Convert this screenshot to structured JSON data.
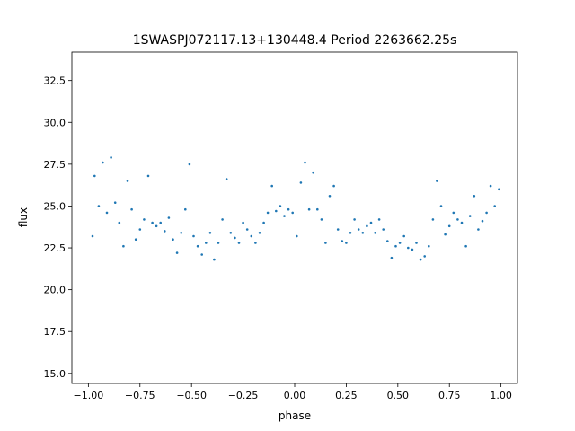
{
  "chart_data": {
    "type": "scatter",
    "title": "1SWASPJ072117.13+130448.4 Period 2263662.25s",
    "xlabel": "phase",
    "ylabel": "flux",
    "xlim": [
      -1.08,
      1.08
    ],
    "ylim": [
      14.4,
      34.2
    ],
    "x_ticks": [
      -1.0,
      -0.75,
      -0.5,
      -0.25,
      0.0,
      0.25,
      0.5,
      0.75,
      1.0
    ],
    "x_tick_labels": [
      "−1.00",
      "−0.75",
      "−0.50",
      "−0.25",
      "0.00",
      "0.25",
      "0.50",
      "0.75",
      "1.00"
    ],
    "y_ticks": [
      15.0,
      17.5,
      20.0,
      22.5,
      25.0,
      27.5,
      30.0,
      32.5
    ],
    "y_tick_labels": [
      "15.0",
      "17.5",
      "20.0",
      "22.5",
      "25.0",
      "27.5",
      "30.0",
      "32.5"
    ],
    "grid": false,
    "marker_color": "#1f77b4",
    "series": [
      {
        "note_values_are_approximate_cluster_summary": false,
        "x": [
          -0.98,
          -0.97,
          -0.95,
          -0.93,
          -0.91,
          -0.89,
          -0.87,
          -0.85,
          -0.83,
          -0.81,
          -0.79,
          -0.77,
          -0.75,
          -0.73,
          -0.71,
          -0.69,
          -0.67,
          -0.65,
          -0.63,
          -0.61,
          -0.59,
          -0.57,
          -0.55,
          -0.53,
          -0.51,
          -0.49,
          -0.47,
          -0.45,
          -0.43,
          -0.41,
          -0.39,
          -0.37,
          -0.35,
          -0.33,
          -0.31,
          -0.29,
          -0.27,
          -0.25,
          -0.23,
          -0.21,
          -0.19,
          -0.17,
          -0.15,
          -0.13,
          -0.11,
          -0.09,
          -0.07,
          -0.05,
          -0.03,
          -0.01,
          0.01,
          0.03,
          0.05,
          0.07,
          0.09,
          0.11,
          0.13,
          0.15,
          0.17,
          0.19,
          0.21,
          0.23,
          0.25,
          0.27,
          0.29,
          0.31,
          0.33,
          0.35,
          0.37,
          0.39,
          0.41,
          0.43,
          0.45,
          0.47,
          0.49,
          0.51,
          0.53,
          0.55,
          0.57,
          0.59,
          0.61,
          0.63,
          0.65,
          0.67,
          0.69,
          0.71,
          0.73,
          0.75,
          0.77,
          0.79,
          0.81,
          0.83,
          0.85,
          0.87,
          0.89,
          0.91,
          0.93,
          0.95,
          0.97,
          0.99
        ],
        "y": [
          23.2,
          26.8,
          25.0,
          27.6,
          24.6,
          27.9,
          25.2,
          24.0,
          22.6,
          26.5,
          24.8,
          23.0,
          23.6,
          24.2,
          26.8,
          24.0,
          23.8,
          24.0,
          23.5,
          24.3,
          23.0,
          22.2,
          23.4,
          24.8,
          27.5,
          23.2,
          22.6,
          22.1,
          22.8,
          23.4,
          21.8,
          22.8,
          24.2,
          26.6,
          23.4,
          23.1,
          22.8,
          24.0,
          23.6,
          23.2,
          22.8,
          23.4,
          24.0,
          24.6,
          26.2,
          24.7,
          25.0,
          24.4,
          24.8,
          24.6,
          23.2,
          26.4,
          27.6,
          24.8,
          27.0,
          24.8,
          24.2,
          22.8,
          25.6,
          26.2,
          23.6,
          22.9,
          22.8,
          23.4,
          24.2,
          23.6,
          23.4,
          23.8,
          24.0,
          23.4,
          24.2,
          23.6,
          22.9,
          21.9,
          22.6,
          22.8,
          23.2,
          22.5,
          22.4,
          22.8,
          21.8,
          22.0,
          22.6,
          24.2,
          26.5,
          25.0,
          23.3,
          23.8,
          24.6,
          24.2,
          24.0,
          22.6,
          24.4,
          25.6,
          23.6,
          24.1,
          24.6,
          26.2,
          25.0,
          26.0
        ]
      }
    ]
  }
}
